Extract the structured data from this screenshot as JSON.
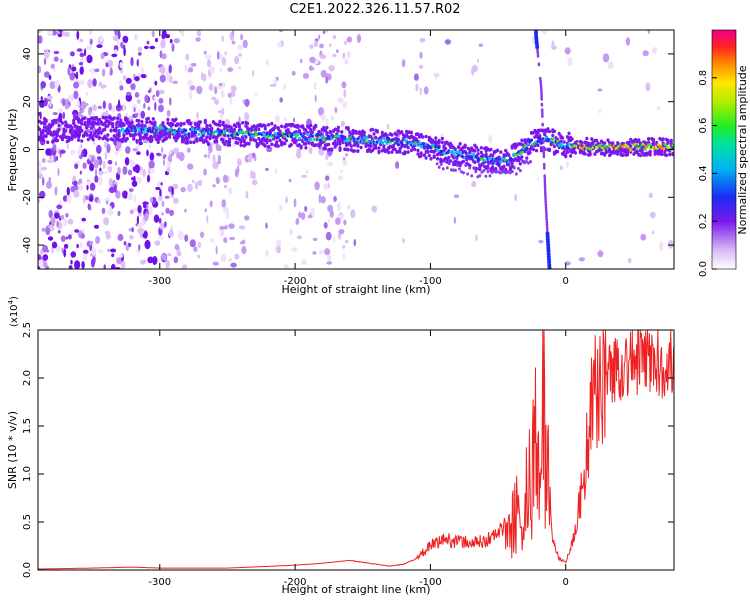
{
  "title": "C2E1.2022.326.11.57.R02",
  "chart_data": [
    {
      "type": "heatmap",
      "title": "C2E1.2022.326.11.57.R02",
      "xlabel": "Height of straight line (km)",
      "ylabel": "Frequency (Hz)",
      "xlim": [
        -390,
        80
      ],
      "ylim": [
        -50,
        50
      ],
      "x_ticks": [
        -300,
        -200,
        -100,
        0
      ],
      "y_ticks": [
        -40,
        -20,
        0,
        20,
        40
      ],
      "x_tick_labels": [
        "-300",
        "-200",
        "-100",
        "0"
      ],
      "y_tick_labels": [
        "-40",
        "-20",
        "0",
        "20",
        "40"
      ],
      "colorbar": {
        "label": "Normalized spectral amplitude",
        "range": [
          0.0,
          1.0
        ],
        "ticks": [
          0.0,
          0.2,
          0.4,
          0.6,
          0.8
        ],
        "tick_labels": [
          "0.0",
          "0.2",
          "0.4",
          "0.6",
          "0.8"
        ],
        "colormap": "rainbow"
      },
      "ridge": {
        "x": [
          -380,
          -340,
          -320,
          -300,
          -260,
          -220,
          -180,
          -150,
          -120,
          -100,
          -80,
          -60,
          -45,
          -35,
          -25,
          -15,
          0,
          20,
          40,
          60,
          80
        ],
        "y": [
          8,
          9,
          8,
          8,
          7,
          6,
          5,
          4,
          3,
          1,
          -2,
          -4,
          -5,
          -2,
          3,
          4,
          2,
          1,
          1,
          1,
          1
        ]
      },
      "branch": {
        "x": [
          -22,
          -18,
          -15,
          -12
        ],
        "y": [
          48,
          25,
          -20,
          -50
        ]
      },
      "grid": false
    },
    {
      "type": "line",
      "xlabel": "Height of straight line (km)",
      "ylabel": "SNR (10 * v/v)",
      "y_multiplier": "(x10^4)",
      "xlim": [
        -390,
        80
      ],
      "ylim": [
        0,
        2.5
      ],
      "x_ticks": [
        -300,
        -200,
        -100,
        0
      ],
      "y_ticks": [
        0.0,
        0.5,
        1.0,
        1.5,
        2.0,
        2.5
      ],
      "x_tick_labels": [
        "-300",
        "-200",
        "-100",
        "0"
      ],
      "y_tick_labels": [
        "0.0",
        "0.5",
        "1.0",
        "1.5",
        "2.0",
        "2.5"
      ],
      "series": [
        {
          "color": "#ee2222",
          "x": [
            -390,
            -350,
            -320,
            -300,
            -250,
            -200,
            -180,
            -160,
            -150,
            -130,
            -120,
            -110,
            -100,
            -90,
            -80,
            -70,
            -60,
            -50,
            -40,
            -35,
            -30,
            -25,
            -20,
            -17,
            -15,
            -12,
            -10,
            -5,
            0,
            5,
            10,
            15,
            20,
            25,
            30,
            40,
            50,
            60,
            70,
            80
          ],
          "y": [
            0.01,
            0.02,
            0.03,
            0.02,
            0.02,
            0.05,
            0.07,
            0.1,
            0.08,
            0.04,
            0.06,
            0.12,
            0.25,
            0.32,
            0.3,
            0.28,
            0.3,
            0.38,
            0.55,
            0.8,
            1.15,
            1.1,
            1.55,
            2.45,
            1.7,
            0.95,
            0.35,
            0.12,
            0.08,
            0.3,
            0.65,
            1.2,
            1.75,
            1.95,
            2.05,
            2.12,
            2.18,
            2.2,
            2.15,
            2.18
          ]
        }
      ],
      "grid": false
    }
  ]
}
